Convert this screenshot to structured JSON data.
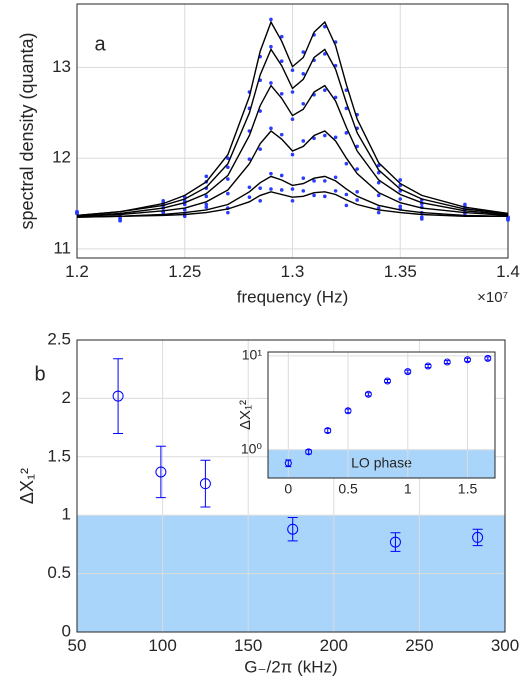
{
  "chart_data": [
    {
      "type": "line",
      "panel_label": "a",
      "xlabel": "frequency (Hz)",
      "ylabel": "spectral density (quanta)",
      "x_multiplier": "×10⁷",
      "xlim": [
        1.2,
        1.4
      ],
      "ylim": [
        10.9,
        13.7
      ],
      "xticks": [
        1.2,
        1.25,
        1.3,
        1.35,
        1.4
      ],
      "yticks": [
        11,
        12,
        13
      ],
      "grid": true,
      "x": [
        1.2,
        1.22,
        1.24,
        1.25,
        1.26,
        1.27,
        1.28,
        1.285,
        1.29,
        1.295,
        1.3,
        1.305,
        1.31,
        1.315,
        1.32,
        1.325,
        1.33,
        1.34,
        1.35,
        1.36,
        1.38,
        1.4
      ],
      "series": [
        {
          "style": "dots",
          "color": "#2a3cff",
          "values": [
            11.41,
            11.36,
            11.53,
            11.57,
            11.8,
            12.0,
            12.73,
            13.12,
            13.53,
            13.34,
            12.97,
            13.17,
            13.36,
            13.45,
            13.28,
            12.75,
            12.48,
            11.92,
            11.76,
            11.54,
            11.49,
            11.35
          ]
        },
        {
          "style": "dots",
          "color": "#2a3cff",
          "values": [
            11.41,
            11.36,
            11.51,
            11.53,
            11.74,
            11.9,
            12.55,
            12.86,
            13.23,
            13.07,
            12.73,
            12.93,
            13.08,
            13.15,
            13.02,
            12.55,
            12.33,
            11.84,
            11.7,
            11.5,
            11.47,
            11.35
          ]
        },
        {
          "style": "dots",
          "color": "#2a3cff",
          "values": [
            11.4,
            11.34,
            11.48,
            11.49,
            11.67,
            11.77,
            12.3,
            12.52,
            12.83,
            12.71,
            12.43,
            12.6,
            12.7,
            12.75,
            12.67,
            12.28,
            12.13,
            11.73,
            11.64,
            11.46,
            11.45,
            11.34
          ]
        },
        {
          "style": "dots",
          "color": "#2a3cff",
          "values": [
            11.4,
            11.33,
            11.45,
            11.43,
            11.58,
            11.61,
            11.99,
            12.1,
            12.33,
            12.26,
            12.04,
            12.19,
            12.22,
            12.25,
            12.23,
            11.94,
            11.88,
            11.59,
            11.55,
            11.4,
            11.43,
            11.33
          ]
        },
        {
          "style": "dots",
          "color": "#2a3cff",
          "values": [
            11.39,
            11.31,
            11.41,
            11.38,
            11.49,
            11.45,
            11.68,
            11.67,
            11.83,
            11.81,
            11.66,
            11.78,
            11.75,
            11.75,
            11.79,
            11.6,
            11.63,
            11.45,
            11.47,
            11.35,
            11.4,
            11.32
          ]
        },
        {
          "style": "dots",
          "color": "#2a3cff",
          "values": [
            11.39,
            11.31,
            11.4,
            11.36,
            11.46,
            11.4,
            11.57,
            11.53,
            11.66,
            11.65,
            11.53,
            11.64,
            11.59,
            11.58,
            11.64,
            11.48,
            11.54,
            11.4,
            11.44,
            11.33,
            11.39,
            11.32
          ]
        },
        {
          "style": "line",
          "color": "#000000",
          "values": [
            11.37,
            11.41,
            11.5,
            11.59,
            11.74,
            12.04,
            12.68,
            13.18,
            13.5,
            13.29,
            13.01,
            13.11,
            13.39,
            13.5,
            13.24,
            12.81,
            12.43,
            11.95,
            11.72,
            11.59,
            11.46,
            11.39
          ]
        },
        {
          "style": "line",
          "color": "#000000",
          "values": [
            11.37,
            11.41,
            11.48,
            11.55,
            11.68,
            11.94,
            12.5,
            12.92,
            13.2,
            13.02,
            12.77,
            12.87,
            13.11,
            13.2,
            12.98,
            12.61,
            12.28,
            11.87,
            11.66,
            11.55,
            11.44,
            11.39
          ]
        },
        {
          "style": "line",
          "color": "#000000",
          "values": [
            11.36,
            11.39,
            11.45,
            11.51,
            11.61,
            11.81,
            12.25,
            12.58,
            12.8,
            12.66,
            12.47,
            12.54,
            12.73,
            12.8,
            12.63,
            12.34,
            12.08,
            11.76,
            11.6,
            11.51,
            11.42,
            11.38
          ]
        },
        {
          "style": "line",
          "color": "#000000",
          "values": [
            11.36,
            11.38,
            11.42,
            11.45,
            11.52,
            11.65,
            11.94,
            12.16,
            12.3,
            12.21,
            12.08,
            12.13,
            12.25,
            12.3,
            12.19,
            12.0,
            11.83,
            11.62,
            11.51,
            11.45,
            11.4,
            11.37
          ]
        },
        {
          "style": "line",
          "color": "#000000",
          "values": [
            11.35,
            11.36,
            11.38,
            11.4,
            11.43,
            11.49,
            11.63,
            11.73,
            11.8,
            11.76,
            11.7,
            11.72,
            11.78,
            11.8,
            11.75,
            11.66,
            11.58,
            11.48,
            11.43,
            11.4,
            11.37,
            11.36
          ]
        },
        {
          "style": "line",
          "color": "#000000",
          "values": [
            11.35,
            11.36,
            11.37,
            11.38,
            11.4,
            11.44,
            11.52,
            11.59,
            11.63,
            11.6,
            11.57,
            11.58,
            11.62,
            11.63,
            11.6,
            11.54,
            11.49,
            11.43,
            11.4,
            11.38,
            11.36,
            11.36
          ]
        }
      ]
    },
    {
      "type": "errorbar",
      "panel_label": "b",
      "xlabel": "G₋/2π (kHz)",
      "ylabel": "ΔX₁²",
      "xlim": [
        50,
        300
      ],
      "ylim": [
        0,
        2.5
      ],
      "xticks": [
        50,
        100,
        150,
        200,
        250,
        300
      ],
      "yticks": [
        0,
        0.5,
        1,
        1.5,
        2,
        2.5
      ],
      "grid": true,
      "shade_below": 1,
      "shade_color": "#a9d5fb",
      "color": "#0000ff",
      "x": [
        74,
        99,
        125,
        176,
        236,
        284
      ],
      "values": [
        2.02,
        1.37,
        1.27,
        0.88,
        0.77,
        0.81
      ],
      "errors": [
        0.32,
        0.22,
        0.2,
        0.1,
        0.08,
        0.07
      ]
    },
    {
      "type": "errorbar",
      "ylabel": "ΔX₁²",
      "log_y": true,
      "xlim": [
        -0.17,
        1.73
      ],
      "ylim": [
        0.5,
        11
      ],
      "xticks": [
        0,
        0.5,
        1,
        1.5
      ],
      "yticks": [
        {
          "value": 1,
          "label": "10⁰"
        },
        {
          "value": 10,
          "label": "10¹"
        }
      ],
      "grid": true,
      "shade_below": 1,
      "shade_color": "#a9d5fb",
      "shade_label": "LO phase",
      "color": "#0000ff",
      "x": [
        0,
        0.17,
        0.33,
        0.5,
        0.67,
        0.83,
        1.0,
        1.17,
        1.33,
        1.5,
        1.67
      ],
      "values": [
        0.72,
        0.95,
        1.6,
        2.6,
        3.9,
        5.4,
        6.8,
        7.8,
        8.6,
        9.1,
        9.4
      ],
      "errors": [
        0.06,
        0.05,
        0.08,
        0.12,
        0.15,
        0.2,
        0.25,
        0.3,
        0.3,
        0.35,
        0.35
      ]
    }
  ]
}
